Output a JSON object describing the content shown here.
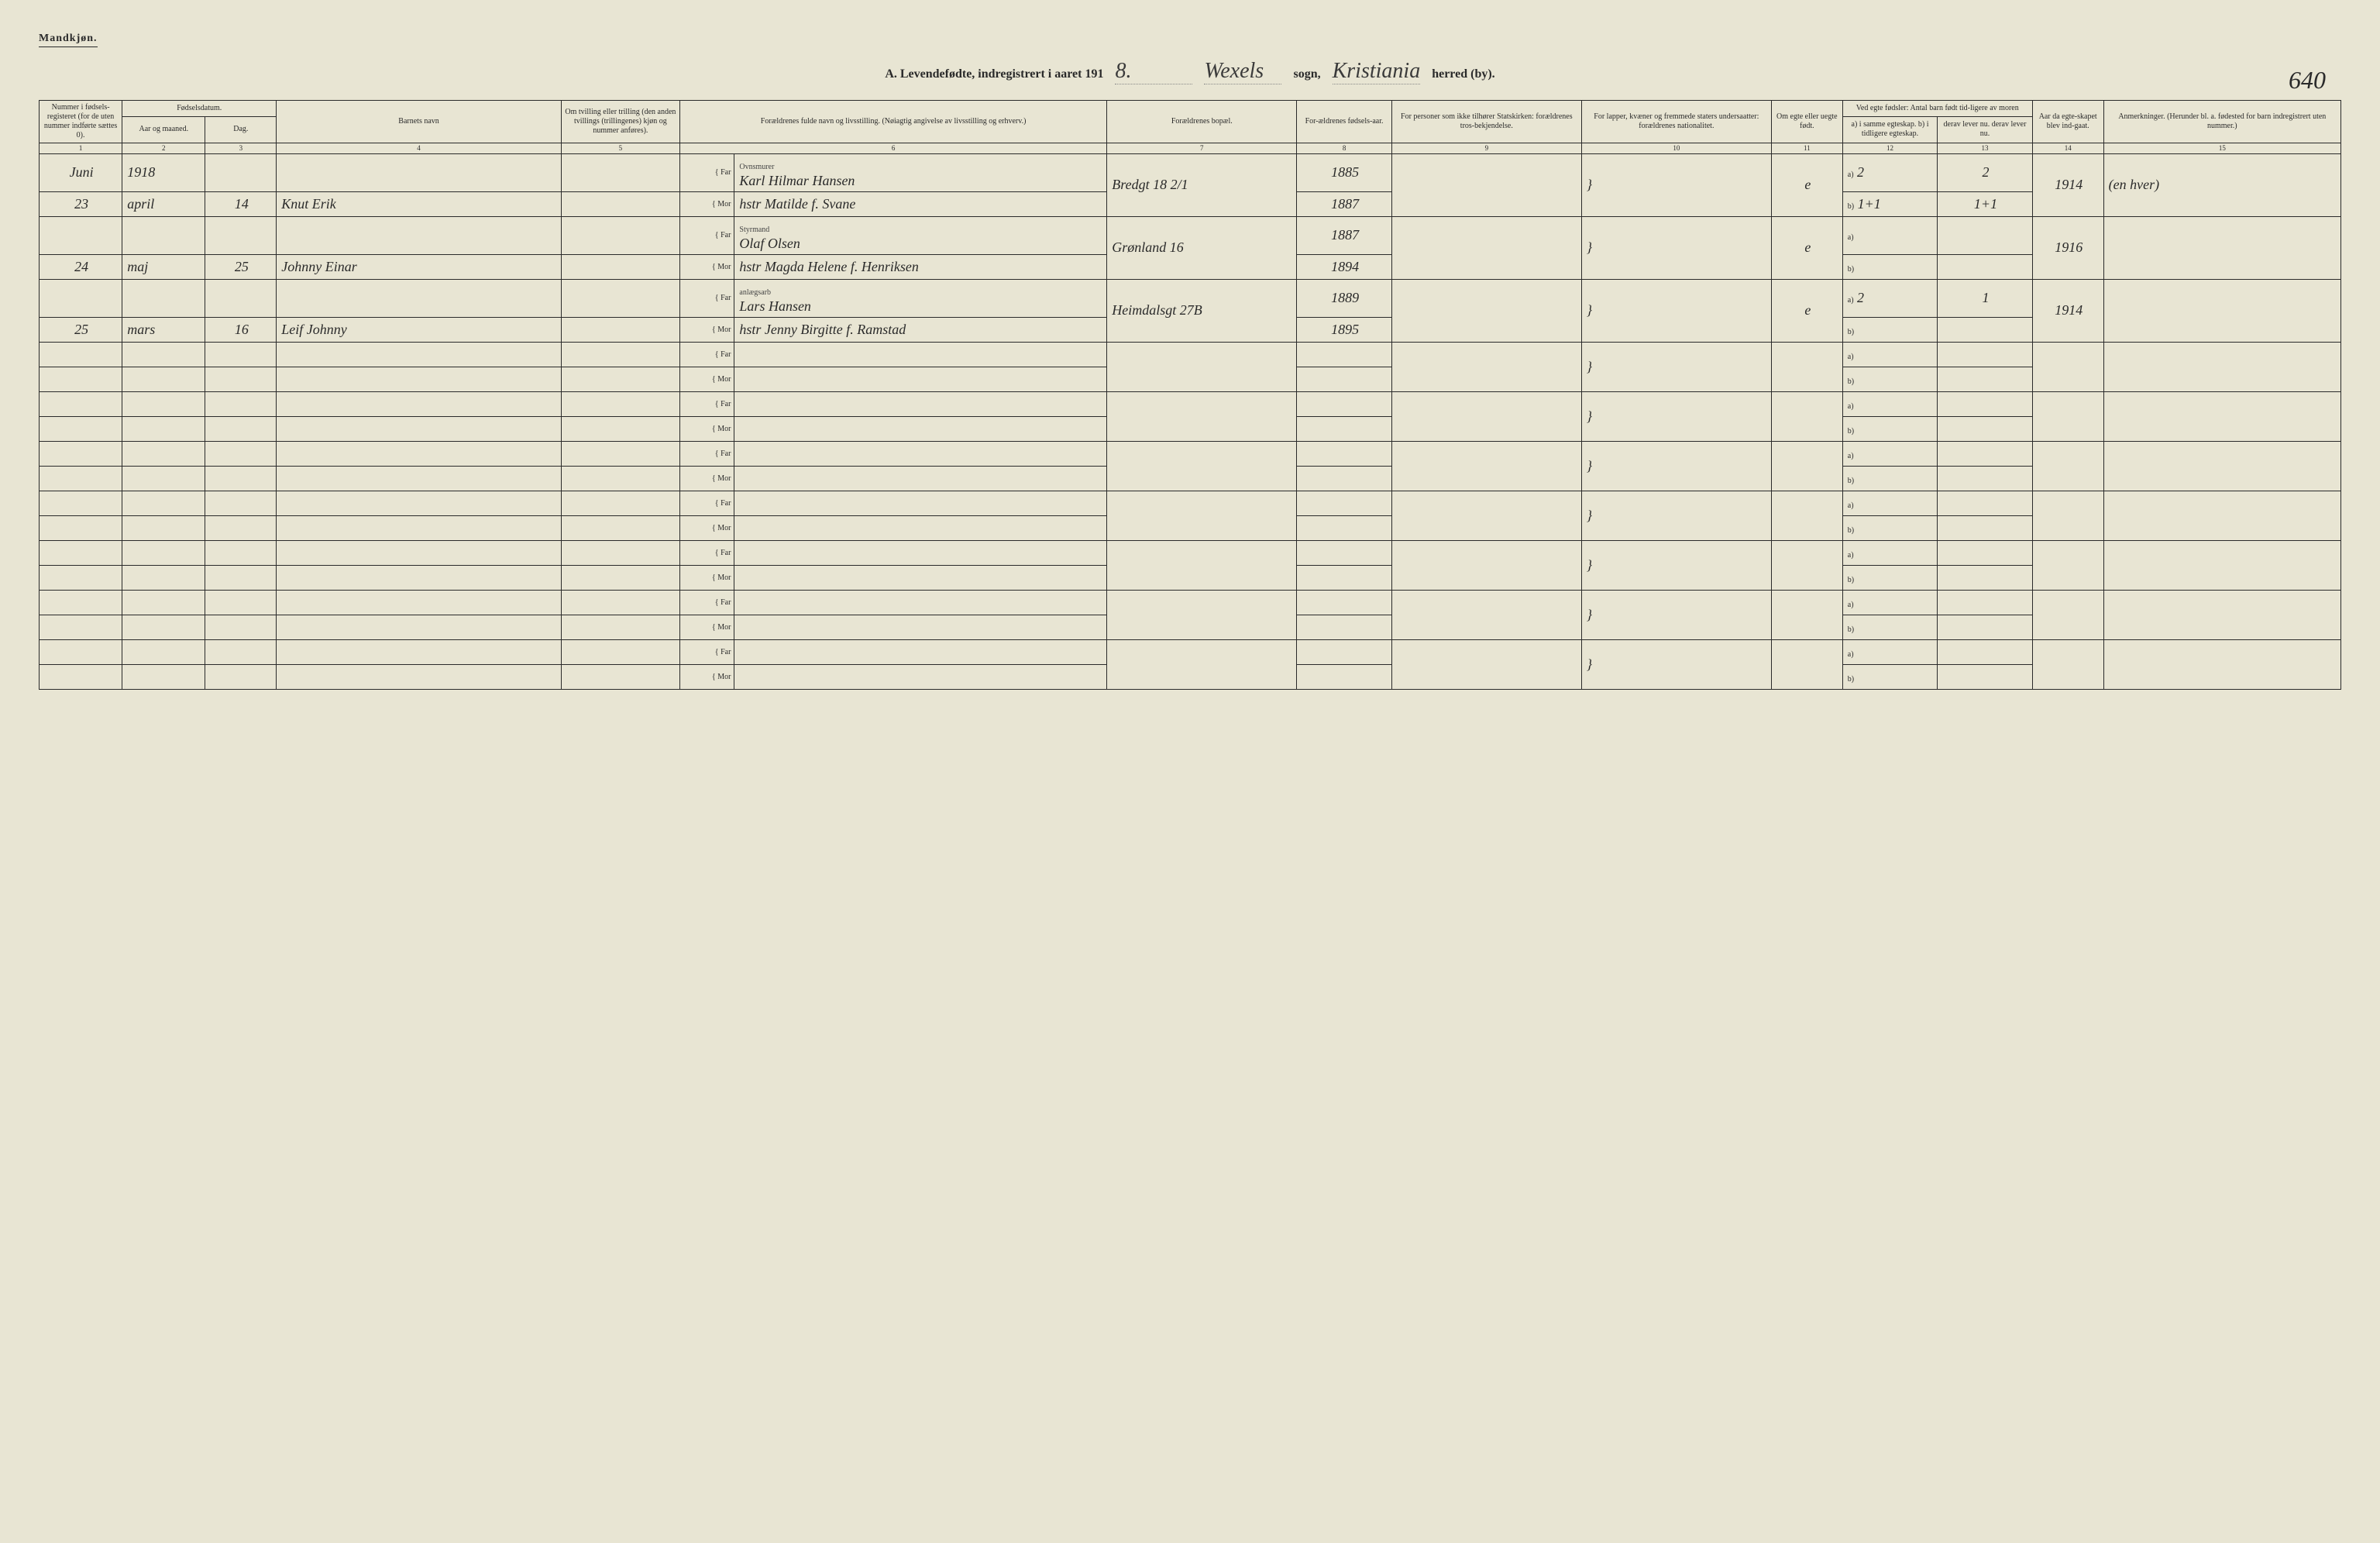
{
  "header": {
    "gender_label": "Mandkjøn.",
    "title_prefix": "A. Levendefødte, indregistrert i aaret 191",
    "year_suffix": "8.",
    "sogn_label": "sogn,",
    "herred_label": "herred (by).",
    "sogn_value": "Wexels",
    "herred_value": "Kristiania",
    "page_number": "640"
  },
  "columns": {
    "c1": "Nummer i fødsels-registeret (for de uten nummer indførte sættes 0).",
    "c2_3_group": "Fødselsdatum.",
    "c2": "Aar og maaned.",
    "c3": "Dag.",
    "c4": "Barnets navn",
    "c5": "Om tvilling eller trilling (den anden tvillings (trillingenes) kjøn og nummer anføres).",
    "c6": "Forældrenes fulde navn og livsstilling. (Nøiagtig angivelse av livsstilling og erhverv.)",
    "c7": "Forældrenes bopæl.",
    "c8": "For-ældrenes fødsels-aar.",
    "c9": "For personer som ikke tilhører Statskirken: forældrenes tros-bekjendelse.",
    "c10": "For lapper, kvæner og fremmede staters undersaatter: forældrenes nationalitet.",
    "c11": "Om egte eller uegte født.",
    "c12_13_group": "Ved egte fødsler: Antal barn født tid-ligere av moren",
    "c12": "a) i samme egteskap. b) i tidligere egteskap.",
    "c13": "derav lever nu. derav lever nu.",
    "c14": "Aar da egte-skapet blev ind-gaat.",
    "c15": "Anmerkninger. (Herunder bl. a. fødested for barn indregistrert uten nummer.)",
    "far": "Far",
    "mor": "Mor"
  },
  "col_numbers": [
    "1",
    "2",
    "3",
    "4",
    "5",
    "6",
    "7",
    "8",
    "9",
    "10",
    "11",
    "12",
    "13",
    "14",
    "15"
  ],
  "entries": [
    {
      "nr_note": "Juni",
      "nr": "23",
      "year": "1918",
      "month": "april",
      "day": "14",
      "child": "Knut Erik",
      "far_occ": "Ovnsmurer",
      "far_name": "Karl Hilmar Hansen",
      "mor_name": "hstr Matilde f. Svane",
      "addr": "Bredgt 18 2/1",
      "far_byr": "1885",
      "mor_byr": "1887",
      "egte": "e",
      "a_same": "2",
      "a_same_live": "2",
      "b_prev": "1+1",
      "b_prev_live": "1+1",
      "marr_yr": "1914",
      "anm": "(en hver)"
    },
    {
      "nr": "24",
      "month": "maj",
      "day": "25",
      "child": "Johnny Einar",
      "far_occ": "Styrmand",
      "far_name": "Olaf Olsen",
      "mor_name": "hstr Magda Helene f. Henriksen",
      "addr": "Grønland 16",
      "far_byr": "1887",
      "mor_byr": "1894",
      "egte": "e",
      "a_same": "",
      "a_same_live": "",
      "b_prev": "",
      "b_prev_live": "",
      "marr_yr": "1916",
      "anm": ""
    },
    {
      "nr": "25",
      "month": "mars",
      "day": "16",
      "child": "Leif Johnny",
      "far_occ": "anlægsarb",
      "far_name": "Lars Hansen",
      "mor_name": "hstr Jenny Birgitte f. Ramstad",
      "addr": "Heimdalsgt 27B",
      "far_byr": "1889",
      "mor_byr": "1895",
      "egte": "e",
      "a_same": "2",
      "a_same_live": "1",
      "b_prev": "",
      "b_prev_live": "",
      "marr_yr": "1914",
      "anm": ""
    }
  ],
  "labels": {
    "a": "a)",
    "b": "b)"
  }
}
